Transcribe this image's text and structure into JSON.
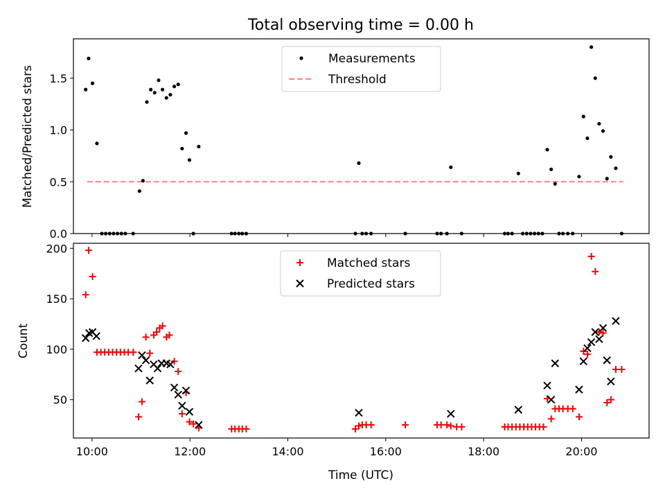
{
  "title": "Total observing time = 0.00 h",
  "chart_data": [
    {
      "type": "scatter",
      "ylabel": "Matched/Predicted stars",
      "xlim": [
        9.62,
        21.38
      ],
      "ylim": [
        0,
        1.88
      ],
      "yticks": [
        0.0,
        0.5,
        1.0,
        1.5
      ],
      "ytick_labels": [
        "0.0",
        "0.5",
        "1.0",
        "1.5"
      ],
      "xticks": [
        10,
        12,
        14,
        16,
        18,
        20
      ],
      "legend": [
        {
          "label": "Measurements",
          "marker": "dot",
          "color": "#000000"
        },
        {
          "label": "Threshold",
          "marker": "dashed-line",
          "color": "#ff8080"
        }
      ],
      "threshold": {
        "value": 0.5,
        "x_range": [
          9.9,
          20.85
        ],
        "color": "#ff8080"
      },
      "series": [
        {
          "name": "Measurements",
          "color": "#000000",
          "points": [
            [
              9.87,
              1.39
            ],
            [
              9.93,
              1.69
            ],
            [
              10.01,
              1.45
            ],
            [
              10.1,
              0.87
            ],
            [
              10.2,
              0.0
            ],
            [
              10.28,
              0.0
            ],
            [
              10.36,
              0.0
            ],
            [
              10.44,
              0.0
            ],
            [
              10.52,
              0.0
            ],
            [
              10.6,
              0.0
            ],
            [
              10.68,
              0.0
            ],
            [
              10.84,
              0.0
            ],
            [
              10.97,
              0.41
            ],
            [
              11.04,
              0.51
            ],
            [
              11.12,
              1.27
            ],
            [
              11.2,
              1.39
            ],
            [
              11.28,
              1.36
            ],
            [
              11.36,
              1.48
            ],
            [
              11.44,
              1.39
            ],
            [
              11.52,
              1.31
            ],
            [
              11.6,
              1.34
            ],
            [
              11.68,
              1.42
            ],
            [
              11.76,
              1.44
            ],
            [
              11.84,
              0.82
            ],
            [
              11.92,
              0.97
            ],
            [
              11.99,
              0.71
            ],
            [
              12.07,
              0.0
            ],
            [
              12.18,
              0.84
            ],
            [
              12.85,
              0.0
            ],
            [
              12.92,
              0.0
            ],
            [
              13.0,
              0.0
            ],
            [
              13.07,
              0.0
            ],
            [
              13.15,
              0.0
            ],
            [
              15.38,
              0.0
            ],
            [
              15.45,
              0.68
            ],
            [
              15.52,
              0.0
            ],
            [
              15.6,
              0.0
            ],
            [
              15.7,
              0.0
            ],
            [
              16.4,
              0.0
            ],
            [
              17.05,
              0.0
            ],
            [
              17.13,
              0.0
            ],
            [
              17.25,
              0.0
            ],
            [
              17.33,
              0.64
            ],
            [
              17.55,
              0.0
            ],
            [
              18.43,
              0.0
            ],
            [
              18.5,
              0.0
            ],
            [
              18.58,
              0.0
            ],
            [
              18.71,
              0.58
            ],
            [
              18.8,
              0.0
            ],
            [
              18.88,
              0.0
            ],
            [
              18.96,
              0.0
            ],
            [
              19.04,
              0.0
            ],
            [
              19.12,
              0.0
            ],
            [
              19.2,
              0.0
            ],
            [
              19.3,
              0.81
            ],
            [
              19.38,
              0.62
            ],
            [
              19.46,
              0.48
            ],
            [
              19.54,
              0.0
            ],
            [
              19.62,
              0.0
            ],
            [
              19.72,
              0.0
            ],
            [
              19.82,
              0.0
            ],
            [
              19.95,
              0.55
            ],
            [
              20.04,
              1.13
            ],
            [
              20.12,
              0.92
            ],
            [
              20.2,
              1.8
            ],
            [
              20.28,
              1.5
            ],
            [
              20.36,
              1.06
            ],
            [
              20.44,
              0.99
            ],
            [
              20.52,
              0.53
            ],
            [
              20.6,
              0.74
            ],
            [
              20.7,
              0.63
            ],
            [
              20.82,
              0.0
            ]
          ]
        }
      ]
    },
    {
      "type": "scatter",
      "xlabel": "Time (UTC)",
      "ylabel": "Count",
      "xlim": [
        9.62,
        21.38
      ],
      "ylim": [
        12,
        205
      ],
      "yticks": [
        50,
        100,
        150,
        200
      ],
      "ytick_labels": [
        "50",
        "100",
        "150",
        "200"
      ],
      "xticks": [
        10,
        12,
        14,
        16,
        18,
        20
      ],
      "xtick_labels": [
        "10:00",
        "12:00",
        "14:00",
        "16:00",
        "18:00",
        "20:00"
      ],
      "legend": [
        {
          "label": "Matched stars",
          "marker": "plus",
          "color": "#ff0000"
        },
        {
          "label": "Predicted stars",
          "marker": "x",
          "color": "#000000"
        }
      ],
      "series": [
        {
          "name": "Matched stars",
          "marker": "plus",
          "color": "#ff0000",
          "points": [
            [
              9.87,
              154
            ],
            [
              9.93,
              198
            ],
            [
              10.01,
              172
            ],
            [
              10.1,
              97
            ],
            [
              10.18,
              97
            ],
            [
              10.26,
              97
            ],
            [
              10.34,
              97
            ],
            [
              10.42,
              97
            ],
            [
              10.5,
              97
            ],
            [
              10.58,
              97
            ],
            [
              10.66,
              97
            ],
            [
              10.74,
              97
            ],
            [
              10.84,
              97
            ],
            [
              10.95,
              33
            ],
            [
              11.02,
              48
            ],
            [
              11.1,
              112
            ],
            [
              11.18,
              96
            ],
            [
              11.26,
              114
            ],
            [
              11.32,
              117
            ],
            [
              11.38,
              121
            ],
            [
              11.44,
              123
            ],
            [
              11.52,
              112
            ],
            [
              11.58,
              114
            ],
            [
              11.68,
              88
            ],
            [
              11.76,
              78
            ],
            [
              11.84,
              36
            ],
            [
              11.92,
              57
            ],
            [
              11.99,
              28
            ],
            [
              12.07,
              26
            ],
            [
              12.18,
              22
            ],
            [
              12.85,
              21
            ],
            [
              12.92,
              21
            ],
            [
              13.0,
              21
            ],
            [
              13.07,
              21
            ],
            [
              13.15,
              21
            ],
            [
              15.38,
              21
            ],
            [
              15.45,
              24
            ],
            [
              15.52,
              25
            ],
            [
              15.6,
              25
            ],
            [
              15.7,
              25
            ],
            [
              16.4,
              25
            ],
            [
              17.05,
              25
            ],
            [
              17.13,
              25
            ],
            [
              17.25,
              25
            ],
            [
              17.33,
              24
            ],
            [
              17.45,
              23
            ],
            [
              17.55,
              23
            ],
            [
              18.43,
              23
            ],
            [
              18.5,
              23
            ],
            [
              18.58,
              23
            ],
            [
              18.66,
              23
            ],
            [
              18.74,
              23
            ],
            [
              18.82,
              23
            ],
            [
              18.9,
              23
            ],
            [
              18.98,
              23
            ],
            [
              19.06,
              23
            ],
            [
              19.14,
              23
            ],
            [
              19.22,
              23
            ],
            [
              19.3,
              51
            ],
            [
              19.38,
              31
            ],
            [
              19.46,
              41
            ],
            [
              19.54,
              41
            ],
            [
              19.62,
              41
            ],
            [
              19.72,
              41
            ],
            [
              19.82,
              41
            ],
            [
              19.95,
              33
            ],
            [
              20.04,
              98
            ],
            [
              20.12,
              95
            ],
            [
              20.2,
              192
            ],
            [
              20.28,
              177
            ],
            [
              20.36,
              117
            ],
            [
              20.44,
              116
            ],
            [
              20.52,
              47
            ],
            [
              20.6,
              50
            ],
            [
              20.7,
              80
            ],
            [
              20.82,
              80
            ]
          ]
        },
        {
          "name": "Predicted stars",
          "marker": "x",
          "color": "#000000",
          "points": [
            [
              9.87,
              111
            ],
            [
              9.94,
              116
            ],
            [
              10.01,
              117
            ],
            [
              10.09,
              113
            ],
            [
              10.95,
              81
            ],
            [
              11.02,
              94
            ],
            [
              11.1,
              89
            ],
            [
              11.18,
              69
            ],
            [
              11.26,
              85
            ],
            [
              11.34,
              81
            ],
            [
              11.42,
              86
            ],
            [
              11.52,
              86
            ],
            [
              11.6,
              85
            ],
            [
              11.68,
              62
            ],
            [
              11.76,
              55
            ],
            [
              11.84,
              44
            ],
            [
              11.92,
              59
            ],
            [
              11.99,
              38
            ],
            [
              12.18,
              25
            ],
            [
              15.45,
              37
            ],
            [
              17.33,
              36
            ],
            [
              18.71,
              40
            ],
            [
              19.3,
              64
            ],
            [
              19.38,
              50
            ],
            [
              19.46,
              86
            ],
            [
              19.95,
              60
            ],
            [
              20.04,
              88
            ],
            [
              20.12,
              101
            ],
            [
              20.2,
              107
            ],
            [
              20.28,
              117
            ],
            [
              20.36,
              110
            ],
            [
              20.44,
              121
            ],
            [
              20.52,
              89
            ],
            [
              20.6,
              68
            ],
            [
              20.7,
              128
            ]
          ]
        }
      ]
    }
  ]
}
